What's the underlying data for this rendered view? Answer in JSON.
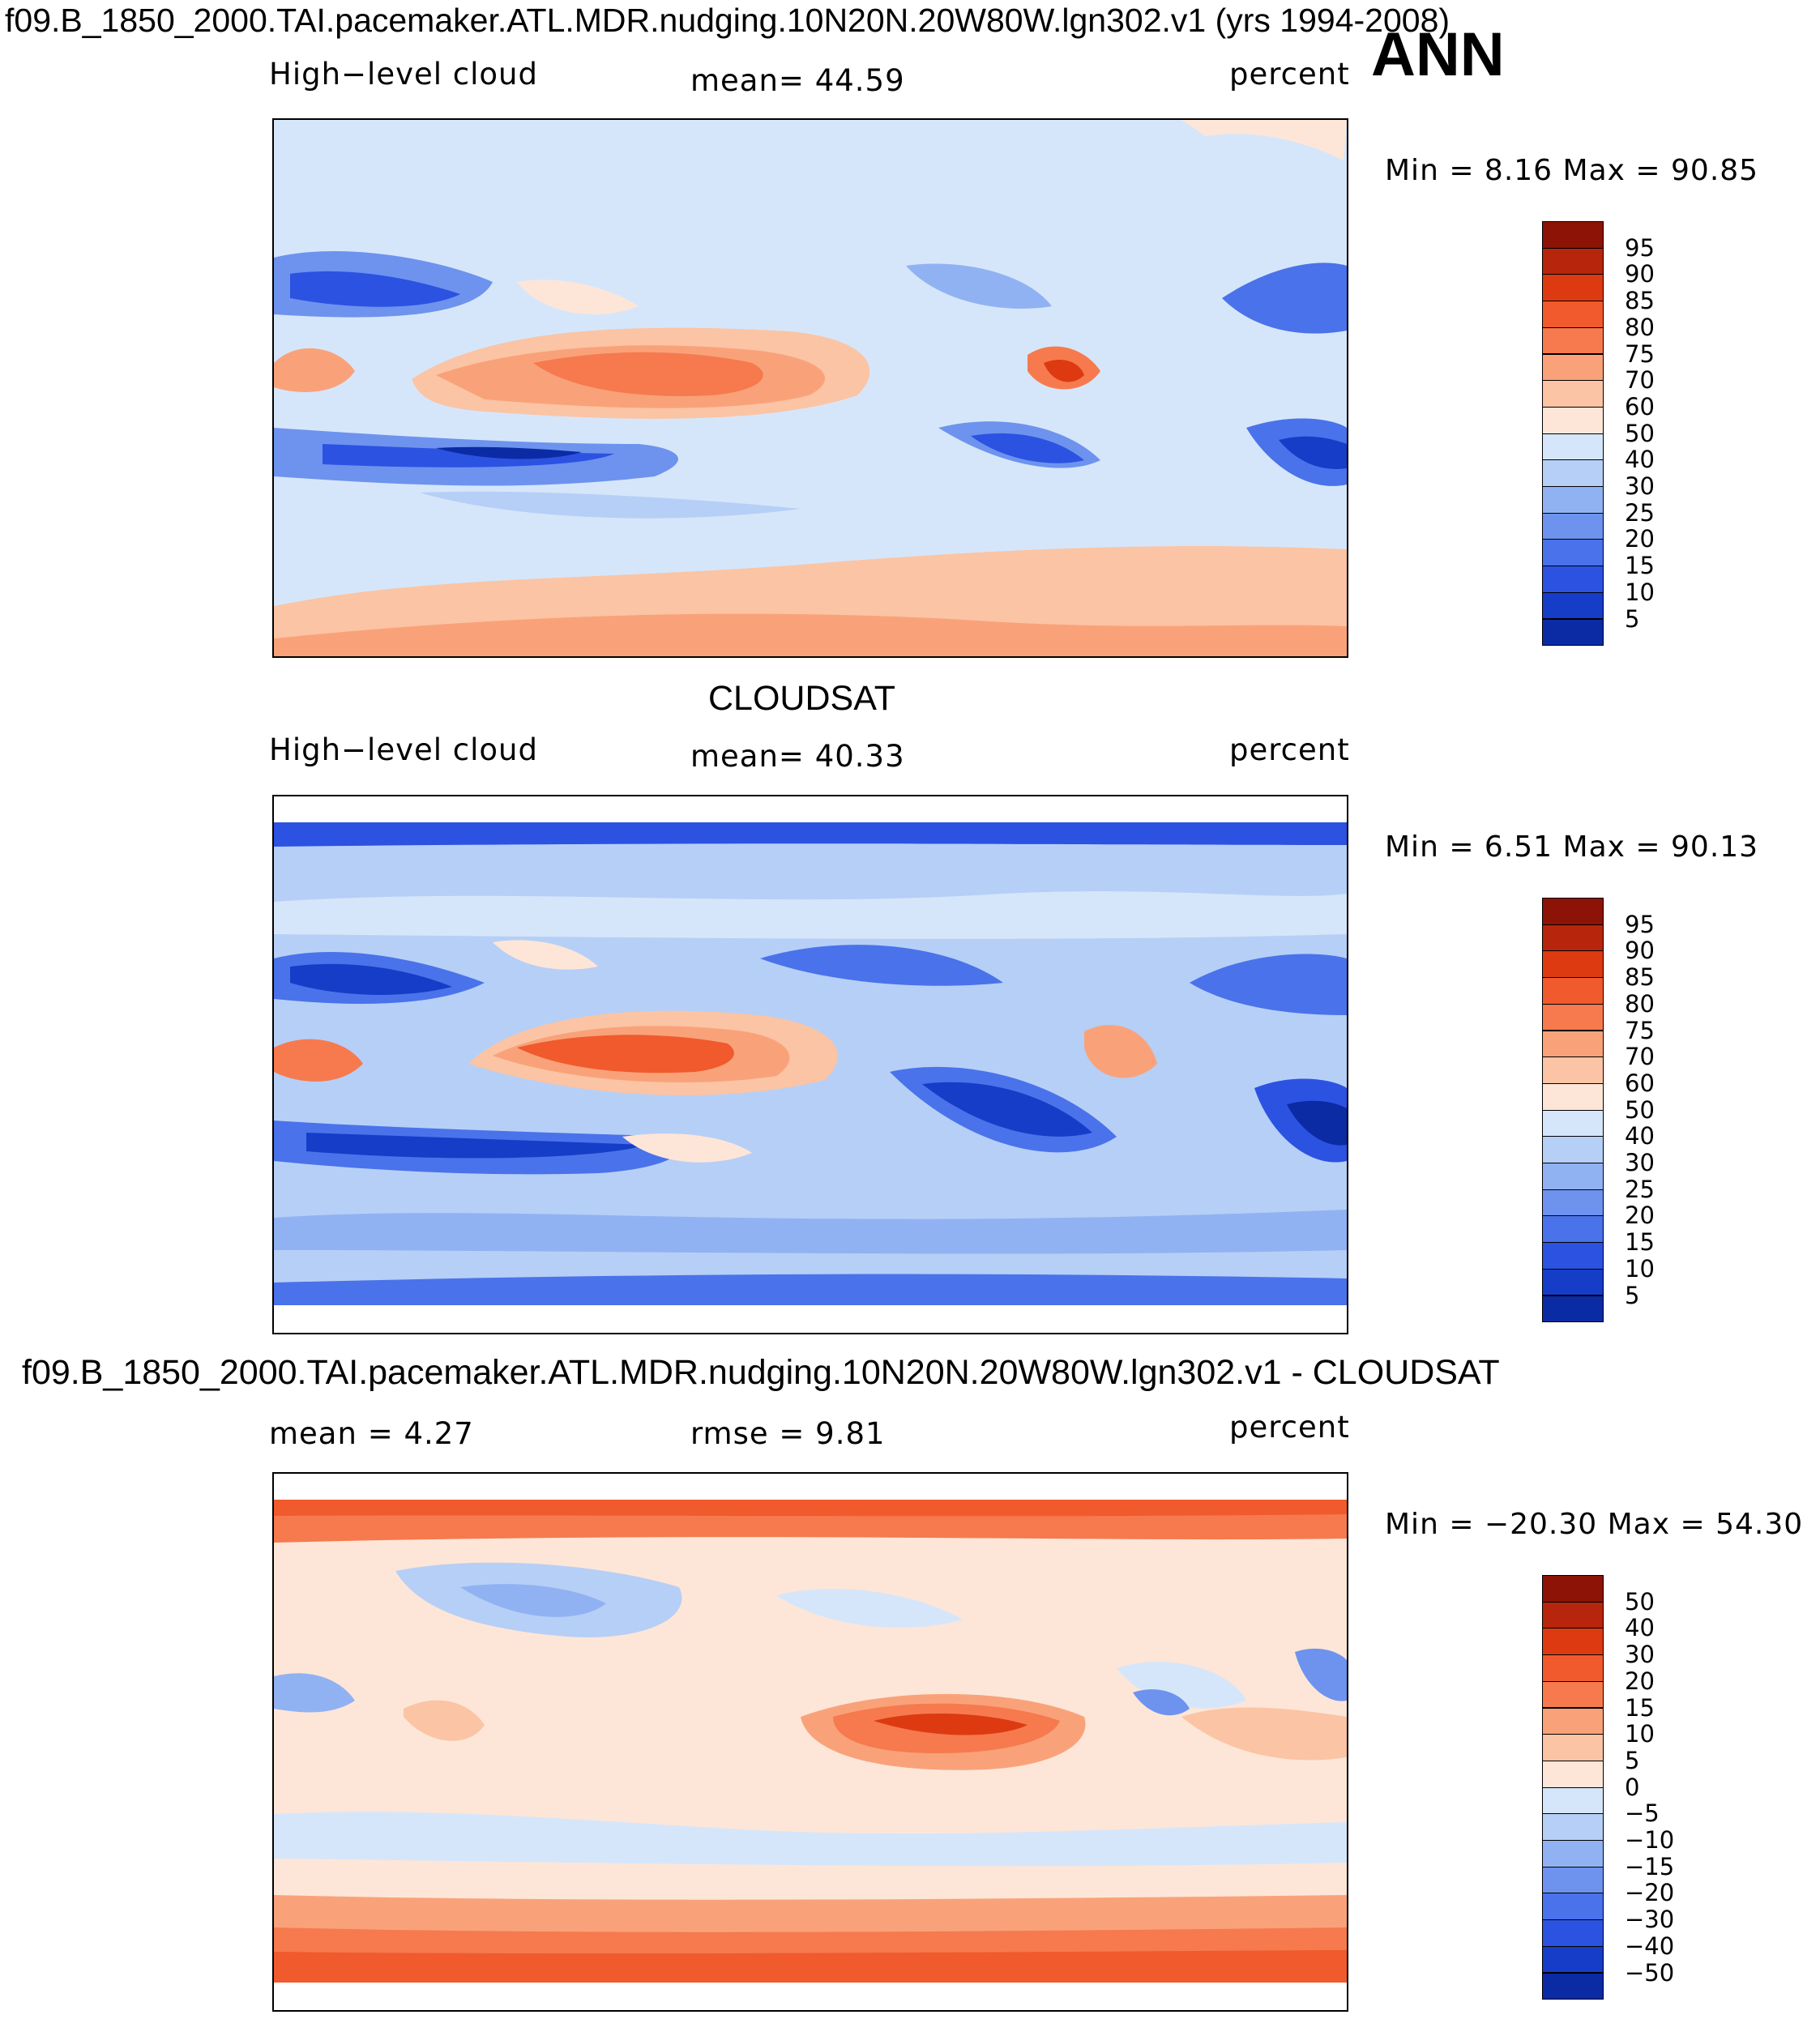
{
  "header": {
    "title": "f09.B_1850_2000.TAI.pacemaker.ATL.MDR.nudging.10N20N.20W80W.lgn302.v1 (yrs 1994-2008)",
    "season": "ANN"
  },
  "colors": {
    "warm": [
      "#fde6d8",
      "#fbc4a4",
      "#f9a27a",
      "#f67a4e",
      "#f05a2c",
      "#dd3a12",
      "#b7260c",
      "#8c1305"
    ],
    "cool": [
      "#d6e6fa",
      "#b6cff6",
      "#91b2f2",
      "#6d93ee",
      "#4a72ea",
      "#2c52e2",
      "#163dc8",
      "#0b2ba5",
      "#0a1a7e"
    ],
    "coastline": "#000000"
  },
  "panels": [
    {
      "id": "model",
      "title": "",
      "left_label": "High−level cloud",
      "center_label": "mean=   44.59",
      "right_label": "percent",
      "minmax": "Min =    8.16  Max =   90.85",
      "colorbar_ticks": [
        "95",
        "90",
        "85",
        "80",
        "75",
        "70",
        "60",
        "50",
        "40",
        "30",
        "25",
        "20",
        "15",
        "10",
        "5"
      ]
    },
    {
      "id": "obs",
      "title": "CLOUDSAT",
      "left_label": "High−level cloud",
      "center_label": "mean=   40.33",
      "right_label": "percent",
      "minmax": "Min =    6.51  Max =   90.13",
      "colorbar_ticks": [
        "95",
        "90",
        "85",
        "80",
        "75",
        "70",
        "60",
        "50",
        "40",
        "30",
        "25",
        "20",
        "15",
        "10",
        "5"
      ]
    },
    {
      "id": "diff",
      "title": "f09.B_1850_2000.TAI.pacemaker.ATL.MDR.nudging.10N20N.20W80W.lgn302.v1 - CLOUDSAT",
      "left_label": "mean =    4.27",
      "center_label": "rmse =    9.81",
      "right_label": "percent",
      "minmax": "Min = −20.30  Max =   54.30",
      "colorbar_ticks": [
        "50",
        "40",
        "30",
        "20",
        "15",
        "10",
        "5",
        "0",
        "−5",
        "−10",
        "−15",
        "−20",
        "−30",
        "−40",
        "−50"
      ]
    }
  ]
}
